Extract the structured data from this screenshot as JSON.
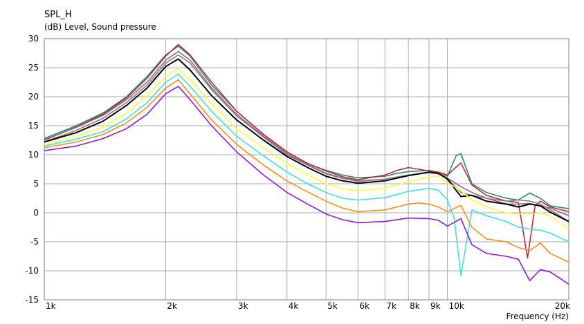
{
  "chart_data": {
    "type": "line",
    "title": "SPL_H",
    "ylabel": "(dB)  Level, Sound pressure",
    "xlabel": "Frequency  (Hz)",
    "xscale": "log",
    "xlim": [
      1000,
      20000
    ],
    "ylim": [
      -15,
      30
    ],
    "grid": true,
    "yticks": [
      30,
      25,
      20,
      15,
      10,
      5,
      0,
      -5,
      -10,
      -15
    ],
    "xticks": [
      {
        "v": 1000,
        "label": "1k"
      },
      {
        "v": 2000,
        "label": "2k"
      },
      {
        "v": 3000,
        "label": "3k"
      },
      {
        "v": 4000,
        "label": "4k"
      },
      {
        "v": 5000,
        "label": "5k"
      },
      {
        "v": 6000,
        "label": "6k"
      },
      {
        "v": 7000,
        "label": "7k"
      },
      {
        "v": 8000,
        "label": "8k"
      },
      {
        "v": 9000,
        "label": "9k"
      },
      {
        "v": 10000,
        "label": "10k"
      },
      {
        "v": 20000,
        "label": "20k"
      }
    ],
    "series": [
      {
        "color": "#2e8b57",
        "points": [
          [
            1000,
            12.8
          ],
          [
            1200,
            15
          ],
          [
            1400,
            17.2
          ],
          [
            1600,
            20
          ],
          [
            1800,
            23.5
          ],
          [
            2000,
            27.2
          ],
          [
            2150,
            28.7
          ],
          [
            2300,
            27
          ],
          [
            2600,
            22
          ],
          [
            3000,
            17.5
          ],
          [
            3500,
            13.5
          ],
          [
            4000,
            10.5
          ],
          [
            4500,
            8.5
          ],
          [
            5000,
            7.3
          ],
          [
            5500,
            6.5
          ],
          [
            6000,
            6
          ],
          [
            7000,
            6.3
          ],
          [
            7500,
            6.8
          ],
          [
            8000,
            7.1
          ],
          [
            9000,
            7.3
          ],
          [
            9500,
            7
          ],
          [
            10000,
            6.3
          ],
          [
            10500,
            9.8
          ],
          [
            10800,
            10.2
          ],
          [
            11500,
            5
          ],
          [
            12500,
            3.5
          ],
          [
            14000,
            2.5
          ],
          [
            15000,
            2.2
          ],
          [
            16000,
            3.4
          ],
          [
            17000,
            2.5
          ],
          [
            18000,
            1.2
          ],
          [
            20000,
            0.7
          ]
        ]
      },
      {
        "color": "#b03040",
        "points": [
          [
            1000,
            12.5
          ],
          [
            1200,
            14.8
          ],
          [
            1400,
            17
          ],
          [
            1600,
            19.8
          ],
          [
            1800,
            23.2
          ],
          [
            2000,
            27
          ],
          [
            2150,
            29
          ],
          [
            2300,
            27.2
          ],
          [
            2600,
            22.5
          ],
          [
            3000,
            17.5
          ],
          [
            3500,
            13.5
          ],
          [
            4000,
            10.5
          ],
          [
            4500,
            8.5
          ],
          [
            5000,
            7.2
          ],
          [
            5500,
            6.2
          ],
          [
            6000,
            5.7
          ],
          [
            7000,
            6.5
          ],
          [
            7500,
            7.3
          ],
          [
            8000,
            7.8
          ],
          [
            8500,
            7.5
          ],
          [
            9000,
            7.2
          ],
          [
            9500,
            7
          ],
          [
            10000,
            6.5
          ],
          [
            10800,
            8.6
          ],
          [
            11500,
            4.8
          ],
          [
            12500,
            3
          ],
          [
            14000,
            2
          ],
          [
            15000,
            1.8
          ],
          [
            15800,
            -7.8
          ],
          [
            16500,
            1.2
          ],
          [
            17000,
            2
          ],
          [
            18000,
            1
          ],
          [
            20000,
            0.2
          ]
        ]
      },
      {
        "color": "#9a6090",
        "points": [
          [
            1000,
            12.6
          ],
          [
            1200,
            14.7
          ],
          [
            1400,
            16.8
          ],
          [
            1600,
            19.5
          ],
          [
            1800,
            22.5
          ],
          [
            2000,
            26.3
          ],
          [
            2150,
            27.8
          ],
          [
            2300,
            26.3
          ],
          [
            2600,
            21.5
          ],
          [
            3000,
            17
          ],
          [
            3500,
            13.2
          ],
          [
            4000,
            10.2
          ],
          [
            4500,
            8.3
          ],
          [
            5000,
            6.8
          ],
          [
            5500,
            6
          ],
          [
            6000,
            5.5
          ],
          [
            7000,
            5.8
          ],
          [
            8000,
            6.5
          ],
          [
            9000,
            7
          ],
          [
            9500,
            6.8
          ],
          [
            10000,
            6
          ],
          [
            10800,
            4.5
          ],
          [
            11500,
            3.5
          ],
          [
            12500,
            2.5
          ],
          [
            14000,
            1.5
          ],
          [
            15000,
            1.5
          ],
          [
            16000,
            1.6
          ],
          [
            17000,
            1.2
          ],
          [
            18000,
            0.8
          ],
          [
            20000,
            -0.5
          ]
        ]
      },
      {
        "color": "#808080",
        "points": [
          [
            1000,
            12.2
          ],
          [
            1200,
            14.2
          ],
          [
            1400,
            16.3
          ],
          [
            1600,
            19
          ],
          [
            1800,
            22
          ],
          [
            2000,
            25.8
          ],
          [
            2150,
            27.2
          ],
          [
            2300,
            25.8
          ],
          [
            2600,
            21.2
          ],
          [
            3000,
            16.7
          ],
          [
            3500,
            13
          ],
          [
            4000,
            10
          ],
          [
            4500,
            8.2
          ],
          [
            5000,
            6.7
          ],
          [
            5500,
            5.9
          ],
          [
            6000,
            5.4
          ],
          [
            7000,
            5.8
          ],
          [
            8000,
            6.5
          ],
          [
            9000,
            6.9
          ],
          [
            9500,
            6.7
          ],
          [
            10000,
            5.9
          ],
          [
            10800,
            3.5
          ],
          [
            11500,
            3
          ],
          [
            12500,
            2.5
          ],
          [
            14000,
            2
          ],
          [
            15000,
            2.2
          ],
          [
            16000,
            2
          ],
          [
            17000,
            1.5
          ],
          [
            18000,
            0.5
          ],
          [
            20000,
            -1.5
          ]
        ]
      },
      {
        "color": "#000000",
        "points": [
          [
            1000,
            12.2
          ],
          [
            1200,
            13.8
          ],
          [
            1400,
            15.8
          ],
          [
            1600,
            18.5
          ],
          [
            1800,
            21.5
          ],
          [
            2000,
            25.2
          ],
          [
            2150,
            26.5
          ],
          [
            2300,
            24.6
          ],
          [
            2600,
            20.2
          ],
          [
            3000,
            16
          ],
          [
            3500,
            12.5
          ],
          [
            4000,
            9.7
          ],
          [
            4500,
            7.8
          ],
          [
            5000,
            6.3
          ],
          [
            5500,
            5.5
          ],
          [
            6000,
            5.1
          ],
          [
            7000,
            5.5
          ],
          [
            8000,
            6.4
          ],
          [
            9000,
            7
          ],
          [
            9500,
            6.8
          ],
          [
            10000,
            5.8
          ],
          [
            10800,
            2.8
          ],
          [
            11500,
            3
          ],
          [
            12500,
            2
          ],
          [
            14000,
            1.5
          ],
          [
            15000,
            1
          ],
          [
            16000,
            1.5
          ],
          [
            17000,
            1.2
          ],
          [
            18000,
            0.1
          ],
          [
            20000,
            -1.5
          ]
        ]
      },
      {
        "color": "#ffff40",
        "points": [
          [
            1000,
            11.8
          ],
          [
            1200,
            13.2
          ],
          [
            1400,
            14.8
          ],
          [
            1600,
            17.2
          ],
          [
            1800,
            20.2
          ],
          [
            2000,
            23.5
          ],
          [
            2150,
            24.8
          ],
          [
            2300,
            23
          ],
          [
            2600,
            18.8
          ],
          [
            3000,
            14.5
          ],
          [
            3500,
            11.2
          ],
          [
            4000,
            8.5
          ],
          [
            4500,
            6.6
          ],
          [
            5000,
            5
          ],
          [
            5500,
            4.2
          ],
          [
            6000,
            3.8
          ],
          [
            7000,
            4.3
          ],
          [
            8000,
            5.3
          ],
          [
            9000,
            6.2
          ],
          [
            9500,
            6.3
          ],
          [
            10000,
            5.2
          ],
          [
            10800,
            3.8
          ],
          [
            11500,
            2.2
          ],
          [
            12500,
            1
          ],
          [
            14000,
            0
          ],
          [
            15000,
            -0.2
          ],
          [
            16000,
            -0.2
          ],
          [
            17000,
            0
          ],
          [
            18000,
            -0.5
          ],
          [
            20000,
            -2.8
          ]
        ]
      },
      {
        "color": "#40e0e0",
        "points": [
          [
            1000,
            11.5
          ],
          [
            1200,
            12.7
          ],
          [
            1400,
            14
          ],
          [
            1600,
            16.2
          ],
          [
            1800,
            19
          ],
          [
            2000,
            22.5
          ],
          [
            2150,
            23.9
          ],
          [
            2300,
            21.8
          ],
          [
            2600,
            17.5
          ],
          [
            3000,
            13.2
          ],
          [
            3500,
            9.8
          ],
          [
            4000,
            7
          ],
          [
            4500,
            5
          ],
          [
            5000,
            3.5
          ],
          [
            5500,
            2.5
          ],
          [
            6000,
            2.2
          ],
          [
            7000,
            2.6
          ],
          [
            8000,
            3.7
          ],
          [
            9000,
            4.2
          ],
          [
            9500,
            3.9
          ],
          [
            10000,
            2.2
          ],
          [
            10400,
            -1
          ],
          [
            10800,
            -10.8
          ],
          [
            11500,
            0.5
          ],
          [
            12500,
            -0.5
          ],
          [
            14000,
            -1.5
          ],
          [
            15000,
            -2.5
          ],
          [
            16000,
            -2.8
          ],
          [
            17000,
            -3
          ],
          [
            18000,
            -3.5
          ],
          [
            20000,
            -5
          ]
        ]
      },
      {
        "color": "#ff8c1a",
        "points": [
          [
            1000,
            11.2
          ],
          [
            1200,
            12.2
          ],
          [
            1400,
            13.5
          ],
          [
            1600,
            15.5
          ],
          [
            1800,
            18.2
          ],
          [
            2000,
            21.5
          ],
          [
            2150,
            22.9
          ],
          [
            2300,
            20.5
          ],
          [
            2600,
            16
          ],
          [
            3000,
            11.8
          ],
          [
            3500,
            8.2
          ],
          [
            4000,
            5.5
          ],
          [
            4500,
            3.6
          ],
          [
            5000,
            2
          ],
          [
            5500,
            0.8
          ],
          [
            6000,
            0.2
          ],
          [
            7000,
            0.5
          ],
          [
            8000,
            1.5
          ],
          [
            8500,
            1.7
          ],
          [
            9000,
            1.5
          ],
          [
            9500,
            1
          ],
          [
            10000,
            0.2
          ],
          [
            10800,
            1.3
          ],
          [
            11500,
            -2.5
          ],
          [
            12500,
            -4.5
          ],
          [
            14000,
            -5
          ],
          [
            15000,
            -6
          ],
          [
            16000,
            -6.5
          ],
          [
            17000,
            -5.2
          ],
          [
            18000,
            -7
          ],
          [
            20000,
            -8.5
          ]
        ]
      },
      {
        "color": "#8b1ad8",
        "points": [
          [
            1000,
            10.7
          ],
          [
            1200,
            11.5
          ],
          [
            1400,
            12.8
          ],
          [
            1600,
            14.5
          ],
          [
            1800,
            17
          ],
          [
            2000,
            20.5
          ],
          [
            2150,
            21.8
          ],
          [
            2300,
            19.5
          ],
          [
            2600,
            15
          ],
          [
            3000,
            10.5
          ],
          [
            3500,
            6.5
          ],
          [
            4000,
            3.5
          ],
          [
            4500,
            1.5
          ],
          [
            5000,
            -0.2
          ],
          [
            5500,
            -1.2
          ],
          [
            6000,
            -1.7
          ],
          [
            7000,
            -1.5
          ],
          [
            8000,
            -0.9
          ],
          [
            9000,
            -1
          ],
          [
            9500,
            -1.3
          ],
          [
            10000,
            -2.3
          ],
          [
            10800,
            -1
          ],
          [
            11500,
            -5.5
          ],
          [
            12500,
            -7
          ],
          [
            14000,
            -7.5
          ],
          [
            15000,
            -8
          ],
          [
            16000,
            -11.7
          ],
          [
            17000,
            -9.8
          ],
          [
            18000,
            -10.2
          ],
          [
            20000,
            -12.3
          ]
        ]
      }
    ]
  }
}
